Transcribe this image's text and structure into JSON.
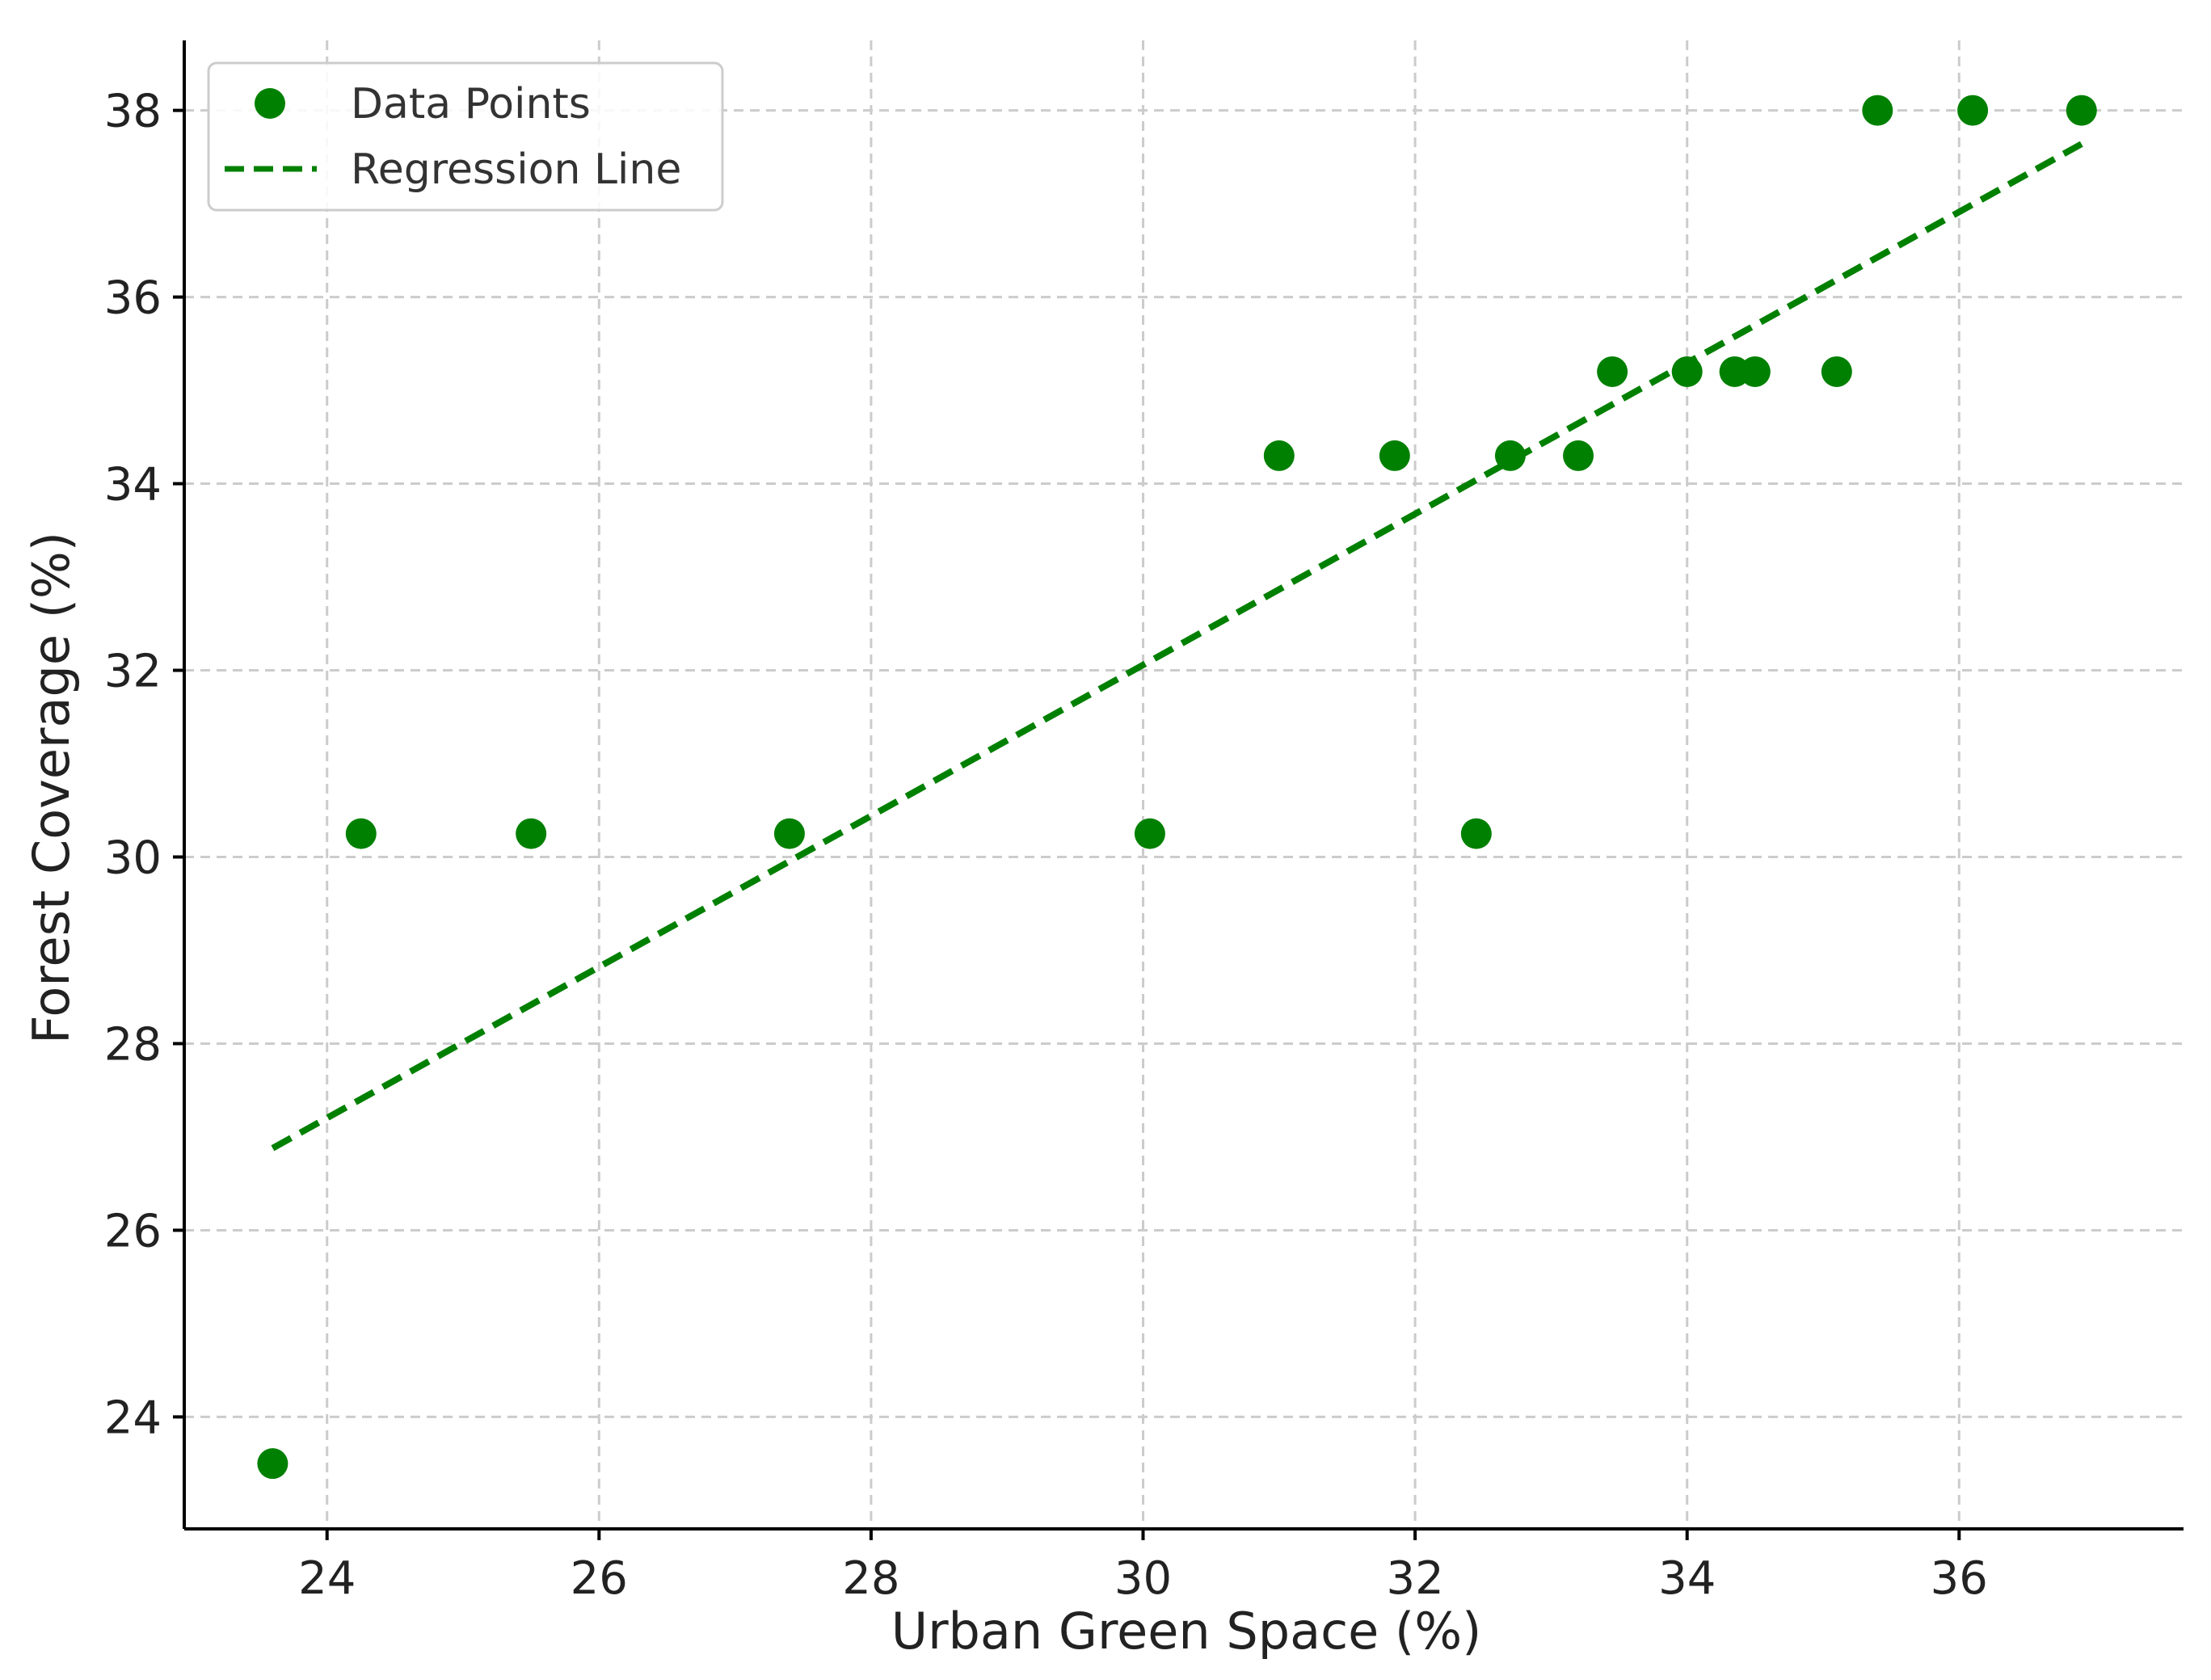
{
  "chart_data": {
    "type": "scatter",
    "xlabel": "Urban Green Space (%)",
    "ylabel": "Forest Coverage (%)",
    "xlim": [
      22.95,
      37.65
    ],
    "ylim": [
      22.8,
      38.75
    ],
    "xticks": [
      24,
      26,
      28,
      30,
      32,
      34,
      36
    ],
    "yticks": [
      24,
      26,
      28,
      30,
      32,
      34,
      36,
      38
    ],
    "grid": true,
    "legend_position": "top-left",
    "color": "#008000",
    "series": [
      {
        "name": "Data Points",
        "kind": "scatter",
        "points": [
          [
            23.6,
            23.5
          ],
          [
            24.25,
            30.25
          ],
          [
            25.5,
            30.25
          ],
          [
            27.4,
            30.25
          ],
          [
            30.05,
            30.25
          ],
          [
            31.0,
            34.3
          ],
          [
            31.85,
            34.3
          ],
          [
            32.45,
            30.25
          ],
          [
            32.7,
            34.3
          ],
          [
            33.2,
            34.3
          ],
          [
            33.45,
            35.2
          ],
          [
            34.0,
            35.2
          ],
          [
            34.35,
            35.2
          ],
          [
            34.5,
            35.2
          ],
          [
            35.1,
            35.2
          ],
          [
            35.4,
            38.0
          ],
          [
            36.1,
            38.0
          ],
          [
            36.9,
            38.0
          ]
        ]
      },
      {
        "name": "Regression Line",
        "kind": "line",
        "style": "dashed",
        "points": [
          [
            23.6,
            26.88
          ],
          [
            36.9,
            37.64
          ]
        ]
      }
    ]
  }
}
